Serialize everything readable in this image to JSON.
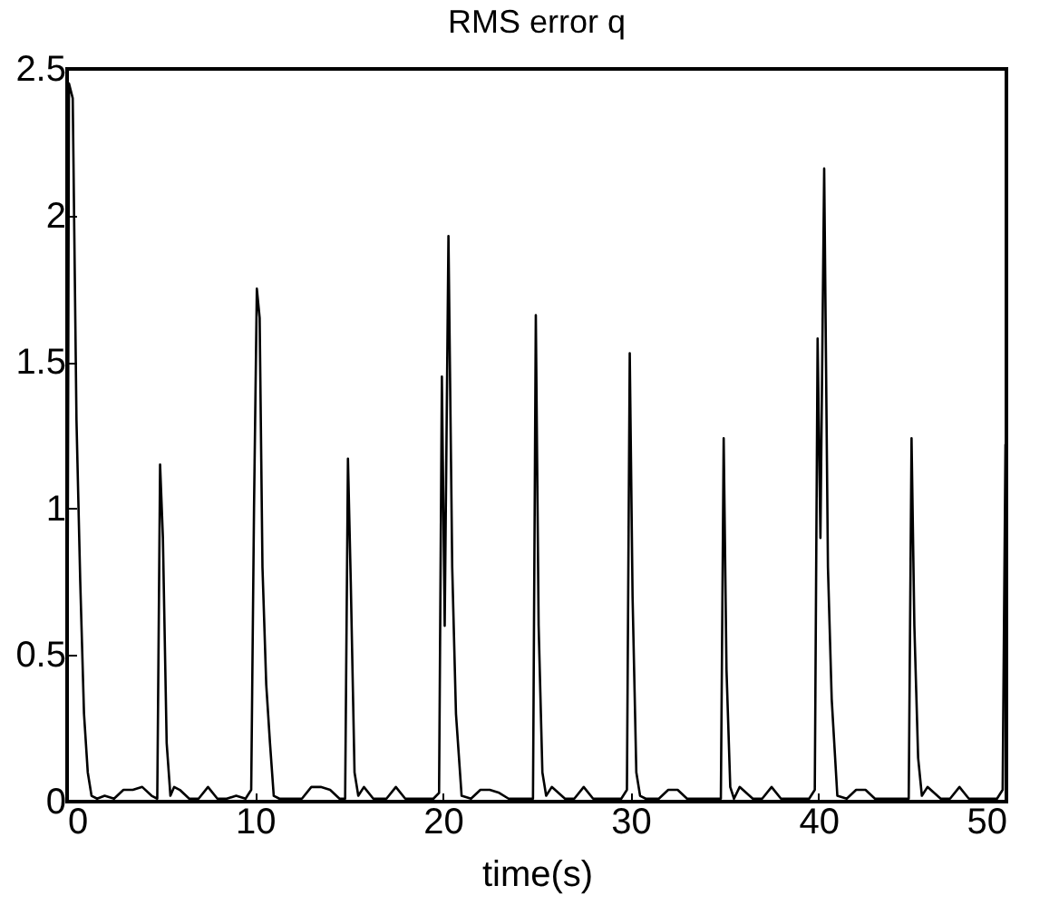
{
  "chart_data": {
    "type": "line",
    "title": "RMS error q",
    "xlabel": "time(s)",
    "xlim": [
      0,
      50
    ],
    "ylim": [
      0,
      2.5
    ],
    "xticks": [
      0,
      10,
      20,
      30,
      40,
      50
    ],
    "yticks": [
      0,
      0.5,
      1,
      1.5,
      2,
      2.5
    ],
    "grid": false,
    "line_style": "solid",
    "marker": "none",
    "series": [
      {
        "color": "#000000",
        "x": [
          0,
          0.1,
          0.3,
          0.5,
          0.7,
          0.9,
          1.1,
          1.3,
          1.6,
          2,
          2.5,
          3,
          3.5,
          4,
          4.5,
          4.8,
          4.95,
          5.1,
          5.3,
          5.5,
          5.7,
          6,
          6.5,
          7,
          7.5,
          8,
          8.5,
          9,
          9.5,
          9.8,
          9.95,
          10.1,
          10.25,
          10.4,
          10.6,
          10.8,
          11,
          11.3,
          12,
          12.5,
          13,
          13.5,
          14,
          14.5,
          14.8,
          14.95,
          15.1,
          15.3,
          15.5,
          15.8,
          16.3,
          17,
          17.5,
          18,
          18.5,
          19,
          19.5,
          19.8,
          19.95,
          20.1,
          20.3,
          20.5,
          20.7,
          21,
          21.5,
          22,
          22.5,
          23,
          23.5,
          24,
          24.5,
          24.8,
          24.95,
          25.1,
          25.3,
          25.5,
          25.8,
          26.5,
          27,
          27.5,
          28,
          28.5,
          29,
          29.5,
          29.8,
          29.95,
          30.1,
          30.3,
          30.5,
          30.8,
          31.5,
          32,
          32.5,
          33,
          33.5,
          34,
          34.5,
          34.8,
          34.95,
          35.1,
          35.3,
          35.5,
          35.8,
          36.5,
          37,
          37.5,
          38,
          38.5,
          39,
          39.5,
          39.8,
          39.95,
          40.1,
          40.3,
          40.5,
          40.7,
          41,
          41.5,
          42,
          42.5,
          43,
          43.5,
          44,
          44.5,
          44.8,
          44.95,
          45.1,
          45.3,
          45.5,
          45.8,
          46.5,
          47,
          47.5,
          48,
          48.5,
          49,
          49.5,
          49.8,
          49.95
        ],
        "values": [
          0,
          2.45,
          2.4,
          1.3,
          0.75,
          0.3,
          0.1,
          0.02,
          0.01,
          0.02,
          0.01,
          0.04,
          0.04,
          0.05,
          0.02,
          0.01,
          1.15,
          0.9,
          0.2,
          0.02,
          0.05,
          0.04,
          0.01,
          0.01,
          0.05,
          0.01,
          0.01,
          0.02,
          0.01,
          0.04,
          1.0,
          1.75,
          1.65,
          0.8,
          0.4,
          0.2,
          0.02,
          0.01,
          0.01,
          0.01,
          0.05,
          0.05,
          0.04,
          0.01,
          0.01,
          1.17,
          0.75,
          0.1,
          0.02,
          0.05,
          0.01,
          0.01,
          0.05,
          0.01,
          0.01,
          0.01,
          0.01,
          0.03,
          1.45,
          0.6,
          1.93,
          0.8,
          0.3,
          0.02,
          0.01,
          0.04,
          0.04,
          0.03,
          0.01,
          0.01,
          0.01,
          0.01,
          1.66,
          0.6,
          0.1,
          0.02,
          0.05,
          0.01,
          0.01,
          0.05,
          0.01,
          0.01,
          0.01,
          0.01,
          0.04,
          1.53,
          0.7,
          0.1,
          0.02,
          0.01,
          0.01,
          0.04,
          0.04,
          0.01,
          0.01,
          0.01,
          0.01,
          0.01,
          1.24,
          0.45,
          0.05,
          0.01,
          0.05,
          0.01,
          0.01,
          0.05,
          0.01,
          0.01,
          0.01,
          0.01,
          0.04,
          1.58,
          0.9,
          2.16,
          0.8,
          0.35,
          0.02,
          0.01,
          0.04,
          0.04,
          0.01,
          0.01,
          0.01,
          0.01,
          0.01,
          1.24,
          0.6,
          0.15,
          0.02,
          0.05,
          0.01,
          0.01,
          0.05,
          0.01,
          0.01,
          0.01,
          0.01,
          0.04,
          1.22
        ]
      }
    ]
  }
}
